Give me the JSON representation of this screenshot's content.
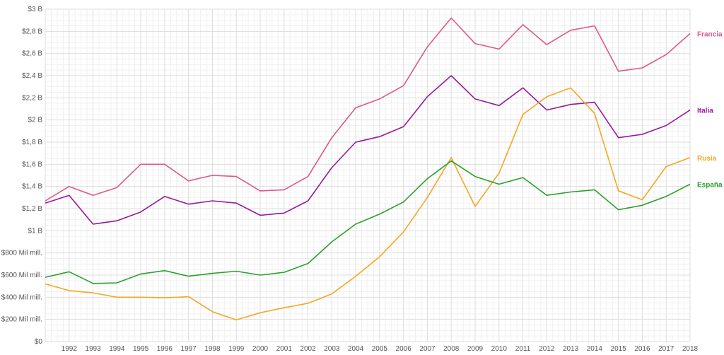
{
  "chart_data": {
    "type": "line",
    "title": "",
    "xlabel": "",
    "ylabel": "",
    "x": [
      1991,
      1992,
      1993,
      1994,
      1995,
      1996,
      1997,
      1998,
      1999,
      2000,
      2001,
      2002,
      2003,
      2004,
      2005,
      2006,
      2007,
      2008,
      2009,
      2010,
      2011,
      2012,
      2013,
      2014,
      2015,
      2016,
      2017,
      2018
    ],
    "x_tick_labels": [
      "1992",
      "1993",
      "1994",
      "1995",
      "1996",
      "1997",
      "1998",
      "1999",
      "2000",
      "2001",
      "2002",
      "2003",
      "2004",
      "2005",
      "2006",
      "2007",
      "2008",
      "2009",
      "2010",
      "2011",
      "2012",
      "2013",
      "2014",
      "2015",
      "2016",
      "2017",
      "2018"
    ],
    "x_tick_values": [
      1992,
      1993,
      1994,
      1995,
      1996,
      1997,
      1998,
      1999,
      2000,
      2001,
      2002,
      2003,
      2004,
      2005,
      2006,
      2007,
      2008,
      2009,
      2010,
      2011,
      2012,
      2013,
      2014,
      2015,
      2016,
      2017,
      2018
    ],
    "xlim": [
      1991,
      2018
    ],
    "ylim": [
      0,
      3000000000
    ],
    "y_tick_values": [
      0,
      200000000,
      400000000,
      600000000,
      800000000,
      1000000000,
      1200000000,
      1400000000,
      1600000000,
      1800000000,
      2000000000,
      2200000000,
      2400000000,
      2600000000,
      2800000000,
      3000000000
    ],
    "y_tick_labels": [
      "$0",
      "$200 Mil mill.",
      "$400 Mil mill.",
      "$600 Mil mill.",
      "$800 Mil mill.",
      "$1 B",
      "$1,2 B",
      "$1,4 B",
      "$1,6 B",
      "$1,8 B",
      "$2 B",
      "$2,2 B",
      "$2,4 B",
      "$2,6 B",
      "$2,8 B",
      "$3 B"
    ],
    "grid": true,
    "legend": "right, at line ends",
    "series": [
      {
        "name": "Francia",
        "color": "#e0568f",
        "values": [
          1270000000,
          1400000000,
          1320000000,
          1390000000,
          1600000000,
          1600000000,
          1450000000,
          1500000000,
          1490000000,
          1360000000,
          1370000000,
          1490000000,
          1840000000,
          2110000000,
          2190000000,
          2310000000,
          2660000000,
          2920000000,
          2690000000,
          2640000000,
          2860000000,
          2680000000,
          2810000000,
          2850000000,
          2440000000,
          2470000000,
          2590000000,
          2780000000
        ]
      },
      {
        "name": "Italia",
        "color": "#9a189a",
        "values": [
          1250000000,
          1320000000,
          1060000000,
          1090000000,
          1170000000,
          1310000000,
          1240000000,
          1270000000,
          1250000000,
          1140000000,
          1160000000,
          1270000000,
          1570000000,
          1800000000,
          1850000000,
          1940000000,
          2210000000,
          2400000000,
          2190000000,
          2130000000,
          2290000000,
          2090000000,
          2140000000,
          2160000000,
          1840000000,
          1870000000,
          1950000000,
          2090000000
        ]
      },
      {
        "name": "Rusia",
        "color": "#f5a623",
        "values": [
          520000000,
          460000000,
          440000000,
          400000000,
          400000000,
          395000000,
          405000000,
          270000000,
          195000000,
          260000000,
          305000000,
          345000000,
          430000000,
          590000000,
          765000000,
          990000000,
          1300000000,
          1660000000,
          1220000000,
          1520000000,
          2050000000,
          2210000000,
          2290000000,
          2060000000,
          1360000000,
          1280000000,
          1580000000,
          1660000000
        ]
      },
      {
        "name": "España",
        "color": "#2ca02c",
        "values": [
          580000000,
          630000000,
          525000000,
          530000000,
          610000000,
          640000000,
          590000000,
          615000000,
          635000000,
          600000000,
          625000000,
          705000000,
          900000000,
          1060000000,
          1150000000,
          1260000000,
          1470000000,
          1630000000,
          1490000000,
          1420000000,
          1480000000,
          1320000000,
          1350000000,
          1370000000,
          1190000000,
          1230000000,
          1310000000,
          1420000000
        ]
      }
    ]
  }
}
